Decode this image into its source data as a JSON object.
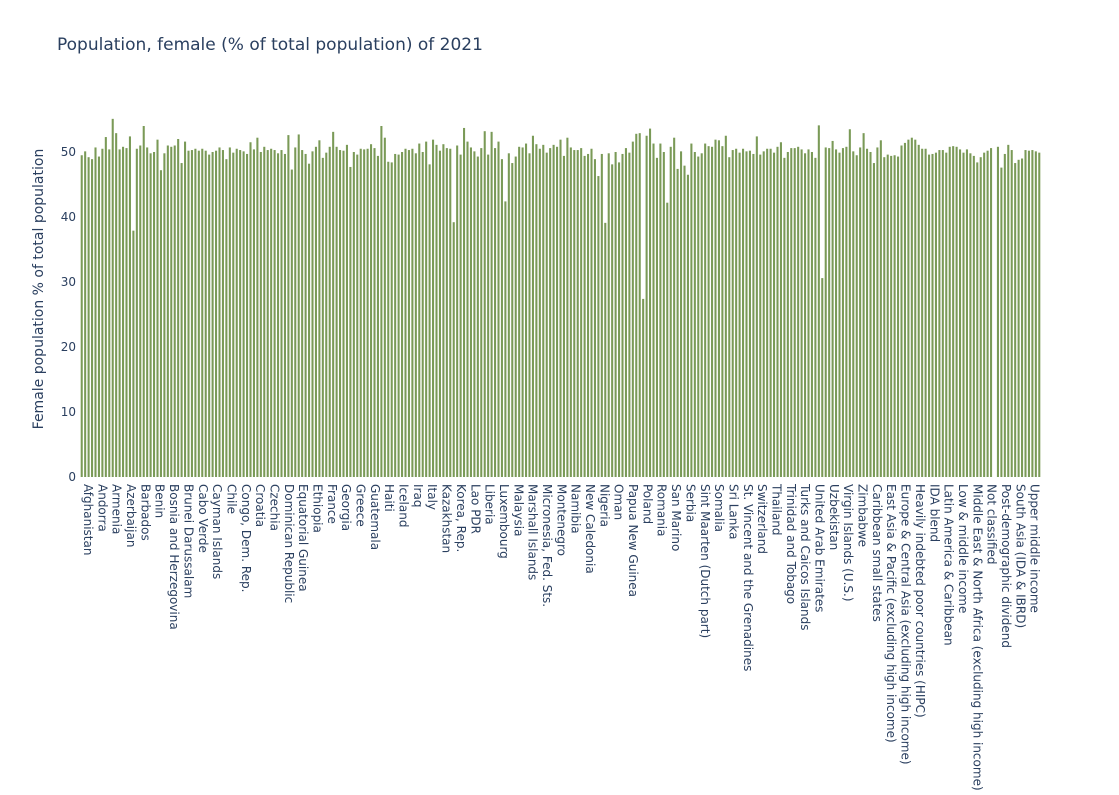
{
  "chart_data": {
    "type": "bar",
    "title": "Population, female (% of total population) of 2021",
    "xlabel": "",
    "ylabel": "Female population % of total population",
    "ylim": [
      0,
      60
    ],
    "y_ticks": [
      "0",
      "10",
      "20",
      "30",
      "40",
      "50"
    ],
    "bar_color": "#7a9a57",
    "grid": false,
    "labeled_categories": [
      "Afghanistan",
      "Andorra",
      "Armenia",
      "Azerbaijan",
      "Barbados",
      "Benin",
      "Bosnia and Herzegovina",
      "Brunei Darussalam",
      "Cabo Verde",
      "Cayman Islands",
      "Chile",
      "Congo, Dem. Rep.",
      "Croatia",
      "Czechia",
      "Dominican Republic",
      "Equatorial Guinea",
      "Ethiopia",
      "France",
      "Georgia",
      "Greece",
      "Guatemala",
      "Haiti",
      "Iceland",
      "Iraq",
      "Italy",
      "Kazakhstan",
      "Korea, Rep.",
      "Lao PDR",
      "Liberia",
      "Luxembourg",
      "Malaysia",
      "Marshall Islands",
      "Micronesia, Fed. Sts.",
      "Montenegro",
      "Namibia",
      "New Caledonia",
      "Nigeria",
      "Oman",
      "Papua New Guinea",
      "Poland",
      "Romania",
      "San Marino",
      "Serbia",
      "Sint Maarten (Dutch part)",
      "Somalia",
      "Sri Lanka",
      "St. Vincent and the Grenadines",
      "Switzerland",
      "Thailand",
      "Trinidad and Tobago",
      "Turks and Caicos Islands",
      "United Arab Emirates",
      "Uzbekistan",
      "Virgin Islands (U.S.)",
      "Zimbabwe",
      "Caribbean small states",
      "East Asia & Pacific (excluding high income)",
      "Europe & Central Asia (excluding high income)",
      "Heavily indebted poor countries (HIPC)",
      "IDA blend",
      "Latin America & Caribbean",
      "Low & middle income",
      "Middle East & North Africa (excluding high income)",
      "Not classified",
      "Post-demographic dividend",
      "South Asia (IDA & IBRD)",
      "Upper middle income"
    ],
    "values": [
      49.5,
      50.1,
      49.2,
      48.9,
      50.7,
      49.3,
      50.5,
      52.3,
      50.4,
      55.1,
      52.9,
      50.4,
      50.8,
      50.6,
      52.4,
      37.9,
      50.5,
      51.0,
      54.0,
      50.7,
      49.8,
      50.0,
      51.9,
      47.2,
      49.8,
      51.0,
      50.8,
      51.0,
      52.0,
      48.3,
      51.6,
      50.2,
      50.3,
      50.5,
      50.2,
      50.5,
      50.2,
      49.6,
      50.0,
      50.2,
      50.7,
      50.3,
      48.9,
      50.7,
      49.9,
      50.5,
      50.3,
      50.1,
      49.7,
      51.5,
      50.4,
      52.2,
      50.0,
      50.8,
      50.3,
      50.5,
      50.3,
      49.8,
      50.3,
      49.7,
      52.6,
      47.3,
      50.7,
      52.7,
      50.3,
      49.7,
      48.2,
      50.1,
      50.8,
      51.8,
      49.1,
      49.9,
      50.8,
      53.1,
      50.8,
      50.3,
      50.2,
      51.1,
      47.7,
      50.0,
      49.6,
      50.5,
      50.4,
      50.5,
      51.2,
      50.6,
      49.4,
      54.0,
      52.2,
      48.5,
      48.4,
      49.7,
      49.6,
      50.0,
      50.5,
      50.3,
      50.5,
      49.8,
      51.3,
      50.0,
      51.6,
      48.1,
      51.9,
      51.1,
      50.2,
      51.2,
      50.6,
      50.5,
      39.2,
      51.0,
      49.6,
      53.7,
      51.6,
      50.7,
      50.1,
      49.3,
      50.6,
      53.2,
      49.6,
      53.1,
      50.6,
      51.6,
      48.9,
      42.4,
      49.8,
      48.3,
      49.3,
      50.8,
      50.7,
      51.3,
      49.8,
      52.5,
      51.2,
      50.5,
      51.1,
      49.9,
      50.6,
      51.1,
      50.8,
      51.9,
      49.4,
      52.2,
      50.7,
      50.3,
      50.3,
      50.6,
      49.4,
      49.7,
      50.5,
      48.9,
      46.3,
      49.7,
      39.1,
      49.8,
      48.1,
      50.0,
      48.4,
      49.7,
      50.6,
      49.9,
      51.6,
      52.8,
      52.9,
      27.4,
      52.5,
      53.6,
      51.3,
      49.1,
      51.3,
      50.0,
      42.2,
      50.8,
      52.2,
      47.4,
      50.1,
      47.9,
      46.5,
      51.3,
      50.0,
      49.3,
      49.8,
      51.3,
      50.9,
      50.8,
      51.9,
      51.8,
      50.9,
      52.5,
      49.2,
      50.3,
      50.5,
      49.9,
      50.5,
      50.1,
      50.2,
      49.7,
      52.4,
      49.6,
      50.1,
      50.5,
      50.5,
      49.9,
      50.8,
      51.5,
      49.1,
      50.0,
      50.6,
      50.6,
      50.8,
      50.4,
      49.8,
      50.4,
      50.0,
      49.1,
      54.1,
      30.6,
      50.7,
      50.6,
      51.7,
      50.4,
      49.9,
      50.6,
      50.8,
      53.5,
      50.1,
      49.5,
      50.7,
      52.9,
      50.5,
      50.0,
      48.3,
      50.7,
      51.8,
      49.2,
      49.6,
      49.4,
      49.5,
      49.3,
      51.0,
      51.4,
      51.9,
      52.2,
      51.9,
      51.1,
      50.5,
      50.5,
      49.6,
      49.7,
      49.9,
      50.3,
      50.3,
      49.9,
      50.8,
      50.9,
      50.8,
      50.4,
      49.9,
      50.4,
      49.8,
      49.4,
      48.4,
      49.2,
      49.9,
      50.2,
      50.6,
      0,
      50.8,
      47.6,
      49.7,
      51.1,
      50.3,
      48.3,
      48.8,
      49.0,
      50.3,
      50.2,
      50.3,
      50.1,
      49.9
    ]
  }
}
